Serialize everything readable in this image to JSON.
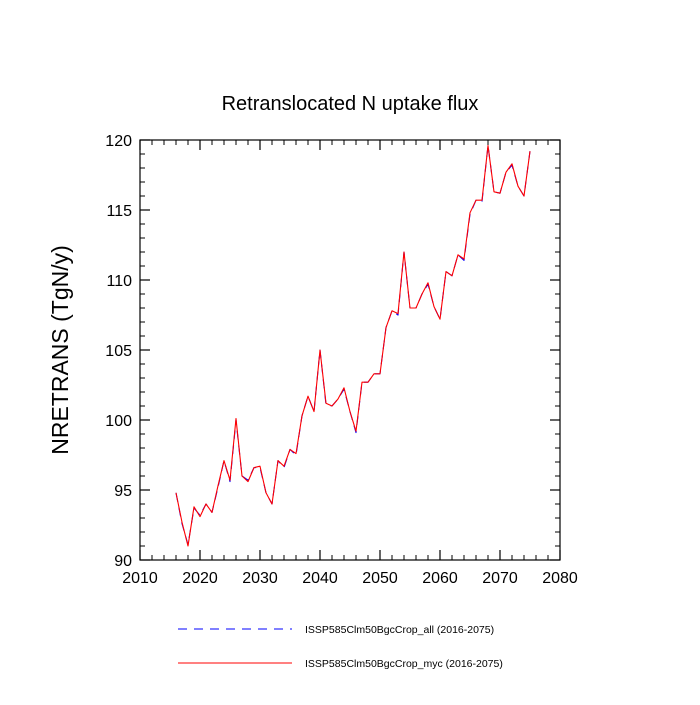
{
  "chart_data": {
    "type": "line",
    "title": "Retranslocated N uptake flux",
    "ylabel": "NRETRANS  (TgN/y)",
    "xlabel": "",
    "xlim": [
      2010,
      2080
    ],
    "ylim": [
      90,
      120
    ],
    "xticks": [
      2010,
      2020,
      2030,
      2040,
      2050,
      2060,
      2070,
      2080
    ],
    "yticks": [
      90,
      95,
      100,
      105,
      110,
      115,
      120
    ],
    "xtick_labels": [
      "2010",
      "2020",
      "2030",
      "2040",
      "2050",
      "2060",
      "2070",
      "2080"
    ],
    "ytick_labels": [
      "90",
      "95",
      "100",
      "105",
      "110",
      "115",
      "120"
    ],
    "grid": false,
    "legend_position": "bottom",
    "x": [
      2016,
      2017,
      2018,
      2019,
      2020,
      2021,
      2022,
      2023,
      2024,
      2025,
      2026,
      2027,
      2028,
      2029,
      2030,
      2031,
      2032,
      2033,
      2034,
      2035,
      2036,
      2037,
      2038,
      2039,
      2040,
      2041,
      2042,
      2043,
      2044,
      2045,
      2046,
      2047,
      2048,
      2049,
      2050,
      2051,
      2052,
      2053,
      2054,
      2055,
      2056,
      2057,
      2058,
      2059,
      2060,
      2061,
      2062,
      2063,
      2064,
      2065,
      2066,
      2067,
      2068,
      2069,
      2070,
      2071,
      2072,
      2073,
      2074,
      2075
    ],
    "series": [
      {
        "name": "ISSP585Clm50BgcCrop_all (2016-2075)",
        "color": "#0000ff",
        "dash": "dashed",
        "values": [
          94.8,
          92.6,
          91.1,
          93.7,
          93.2,
          94.0,
          93.4,
          95.2,
          97.1,
          95.6,
          100.0,
          96.0,
          95.7,
          96.6,
          96.6,
          94.8,
          94.0,
          97.1,
          96.6,
          97.9,
          97.5,
          100.3,
          101.7,
          100.6,
          105.0,
          101.1,
          101.0,
          101.5,
          102.2,
          100.6,
          99.1,
          102.7,
          102.7,
          103.3,
          103.3,
          106.6,
          107.8,
          107.5,
          112.0,
          108.0,
          108.0,
          109.0,
          109.7,
          108.1,
          107.2,
          110.6,
          110.3,
          111.8,
          111.4,
          114.7,
          115.7,
          115.6,
          119.6,
          116.3,
          116.2,
          117.7,
          118.2,
          116.7,
          116.0,
          119.2
        ]
      },
      {
        "name": "ISSP585Clm50BgcCrop_myc (2016-2075)",
        "color": "#ff0000",
        "dash": "solid",
        "values": [
          94.8,
          92.7,
          91.0,
          93.8,
          93.1,
          94.0,
          93.4,
          95.3,
          97.1,
          95.7,
          100.1,
          96.0,
          95.6,
          96.6,
          96.7,
          94.8,
          94.0,
          97.1,
          96.7,
          97.9,
          97.6,
          100.3,
          101.7,
          100.6,
          105.0,
          101.2,
          101.0,
          101.5,
          102.3,
          100.6,
          99.2,
          102.7,
          102.7,
          103.3,
          103.3,
          106.6,
          107.8,
          107.6,
          112.0,
          108.0,
          108.0,
          109.0,
          109.8,
          108.1,
          107.2,
          110.6,
          110.3,
          111.8,
          111.5,
          114.8,
          115.7,
          115.7,
          119.6,
          116.3,
          116.2,
          117.7,
          118.3,
          116.7,
          116.0,
          119.2
        ]
      }
    ]
  }
}
